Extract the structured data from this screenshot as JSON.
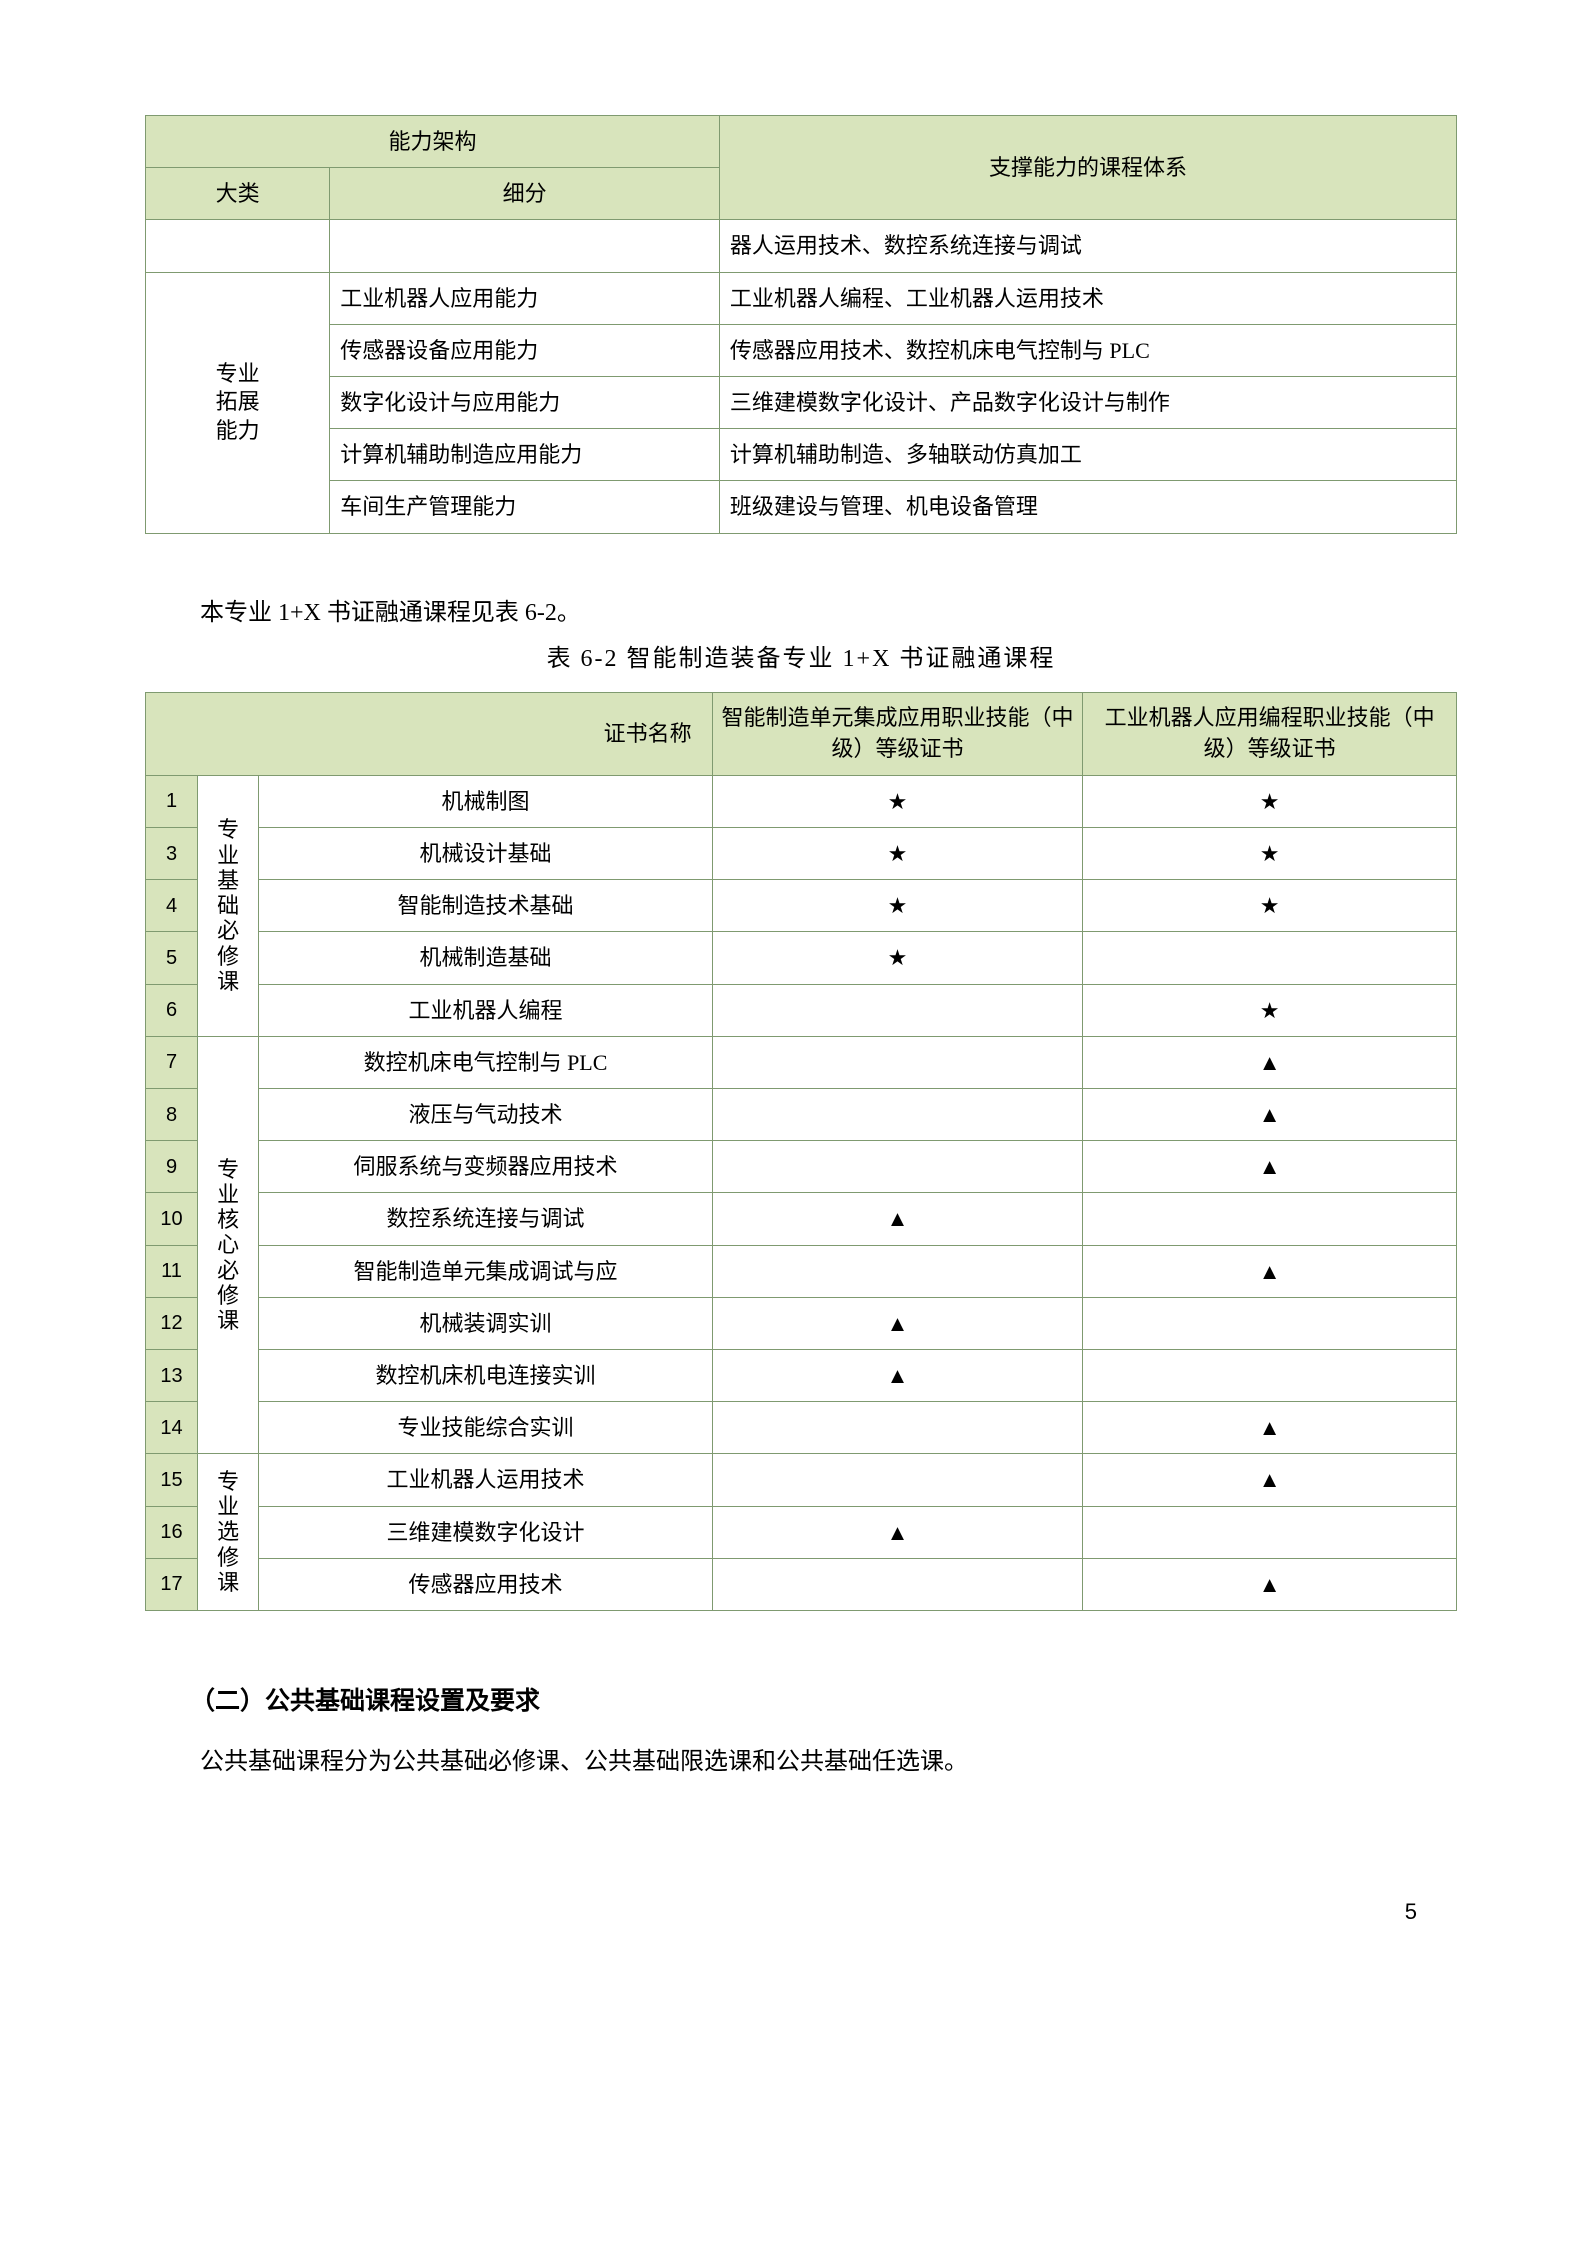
{
  "colors": {
    "header_bg": "#d8e4bc",
    "border": "#7f9a70",
    "text": "#000000",
    "page_bg": "#ffffff"
  },
  "table1": {
    "headers": {
      "ability_structure": "能力架构",
      "major_cat": "大类",
      "subdiv": "细分",
      "support": "支撑能力的课程体系"
    },
    "continuation_desc": "器人运用技术、数控系统连接与调试",
    "group_label": "专业拓展能力",
    "rows": [
      {
        "sub": "工业机器人应用能力",
        "desc": "工业机器人编程、工业机器人运用技术"
      },
      {
        "sub": "传感器设备应用能力",
        "desc": "传感器应用技术、数控机床电气控制与 PLC"
      },
      {
        "sub": "数字化设计与应用能力",
        "desc": "三维建模数字化设计、产品数字化设计与制作"
      },
      {
        "sub": "计算机辅助制造应用能力",
        "desc": "计算机辅助制造、多轴联动仿真加工"
      },
      {
        "sub": "车间生产管理能力",
        "desc": "班级建设与管理、机电设备管理"
      }
    ]
  },
  "para_intro": "本专业 1+X 书证融通课程见表 6-2。",
  "caption": "表 6-2   智能制造装备专业 1+X 书证融通课程",
  "table2": {
    "headers": {
      "cert_name": "证书名称",
      "cert1": "智能制造单元集成应用职业技能（中级）等级证书",
      "cert2": "工业机器人应用编程职业技能（中级）等级证书"
    },
    "symbols": {
      "star": "★",
      "triangle": "▲"
    },
    "groups": {
      "g1": "专业基础必修课",
      "g2": "专业核心必修课",
      "g3": "专业选修课"
    },
    "rows": [
      {
        "n": "1",
        "course": "机械制图",
        "m1": "star",
        "m2": "star"
      },
      {
        "n": "3",
        "course": "机械设计基础",
        "m1": "star",
        "m2": "star"
      },
      {
        "n": "4",
        "course": "智能制造技术基础",
        "m1": "star",
        "m2": "star"
      },
      {
        "n": "5",
        "course": "机械制造基础",
        "m1": "star",
        "m2": ""
      },
      {
        "n": "6",
        "course": "工业机器人编程",
        "m1": "",
        "m2": "star"
      },
      {
        "n": "7",
        "course": "数控机床电气控制与 PLC",
        "m1": "",
        "m2": "triangle"
      },
      {
        "n": "8",
        "course": "液压与气动技术",
        "m1": "",
        "m2": "triangle"
      },
      {
        "n": "9",
        "course": "伺服系统与变频器应用技术",
        "m1": "",
        "m2": "triangle"
      },
      {
        "n": "10",
        "course": "数控系统连接与调试",
        "m1": "triangle",
        "m2": ""
      },
      {
        "n": "11",
        "course": "智能制造单元集成调试与应",
        "m1": "",
        "m2": "triangle"
      },
      {
        "n": "12",
        "course": "机械装调实训",
        "m1": "triangle",
        "m2": ""
      },
      {
        "n": "13",
        "course": "数控机床机电连接实训",
        "m1": "triangle",
        "m2": ""
      },
      {
        "n": "14",
        "course": "专业技能综合实训",
        "m1": "",
        "m2": "triangle"
      },
      {
        "n": "15",
        "course": "工业机器人运用技术",
        "m1": "",
        "m2": "triangle"
      },
      {
        "n": "16",
        "course": "三维建模数字化设计",
        "m1": "triangle",
        "m2": ""
      },
      {
        "n": "17",
        "course": "传感器应用技术",
        "m1": "",
        "m2": "triangle"
      }
    ]
  },
  "section_heading": "（二）公共基础课程设置及要求",
  "body_text": "公共基础课程分为公共基础必修课、公共基础限选课和公共基础任选课。",
  "page_no": "5"
}
